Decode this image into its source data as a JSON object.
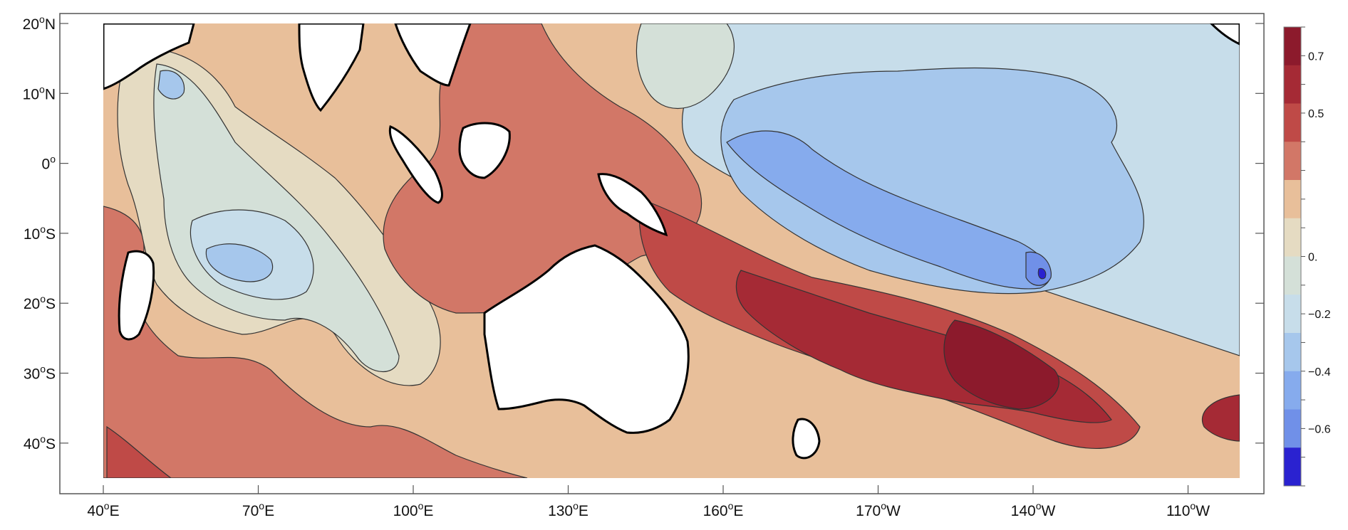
{
  "map": {
    "projection": "equirectangular",
    "region": "Indian Ocean and tropical Pacific",
    "lon_range": [
      "40°E",
      "100°W"
    ],
    "lat_range": [
      "45°S",
      "20°N"
    ],
    "grid": false,
    "contour_lines": true
  },
  "axes": {
    "x_ticks": [
      {
        "prefix": "40",
        "sup": "o",
        "suffix": "E"
      },
      {
        "prefix": "70",
        "sup": "o",
        "suffix": "E"
      },
      {
        "prefix": "100",
        "sup": "o",
        "suffix": "E"
      },
      {
        "prefix": "130",
        "sup": "o",
        "suffix": "E"
      },
      {
        "prefix": "160",
        "sup": "o",
        "suffix": "E"
      },
      {
        "prefix": "170",
        "sup": "o",
        "suffix": "W"
      },
      {
        "prefix": "140",
        "sup": "o",
        "suffix": "W"
      },
      {
        "prefix": "110",
        "sup": "o",
        "suffix": "W"
      }
    ],
    "y_ticks": [
      {
        "prefix": "20",
        "sup": "o",
        "suffix": "N"
      },
      {
        "prefix": "10",
        "sup": "o",
        "suffix": "N"
      },
      {
        "prefix": "0",
        "sup": "o",
        "suffix": ""
      },
      {
        "prefix": "10",
        "sup": "o",
        "suffix": "S"
      },
      {
        "prefix": "20",
        "sup": "o",
        "suffix": "S"
      },
      {
        "prefix": "30",
        "sup": "o",
        "suffix": "S"
      },
      {
        "prefix": "40",
        "sup": "o",
        "suffix": "S"
      }
    ]
  },
  "colorbar": {
    "labels": [
      "0.7",
      "0.5",
      "0.",
      "−0.2",
      "−0.4",
      "−0.6"
    ],
    "levels": [
      0.8,
      0.7,
      0.6,
      0.5,
      0.4,
      0.3,
      0.2,
      0.1,
      0.0,
      -0.1,
      -0.2,
      -0.3,
      -0.4,
      -0.5,
      -0.6,
      -0.7,
      -0.8
    ],
    "colors": [
      "#8c1a2c",
      "#a52a35",
      "#bf4a47",
      "#d27767",
      "#e8bf9a",
      "#e5dbc2",
      "#d4e0d8",
      "#c7ddea",
      "#a6c7ec",
      "#86abed",
      "#7090e8",
      "#2a22d0"
    ]
  },
  "land_color": "#ffffff",
  "coast_color": "#000000"
}
